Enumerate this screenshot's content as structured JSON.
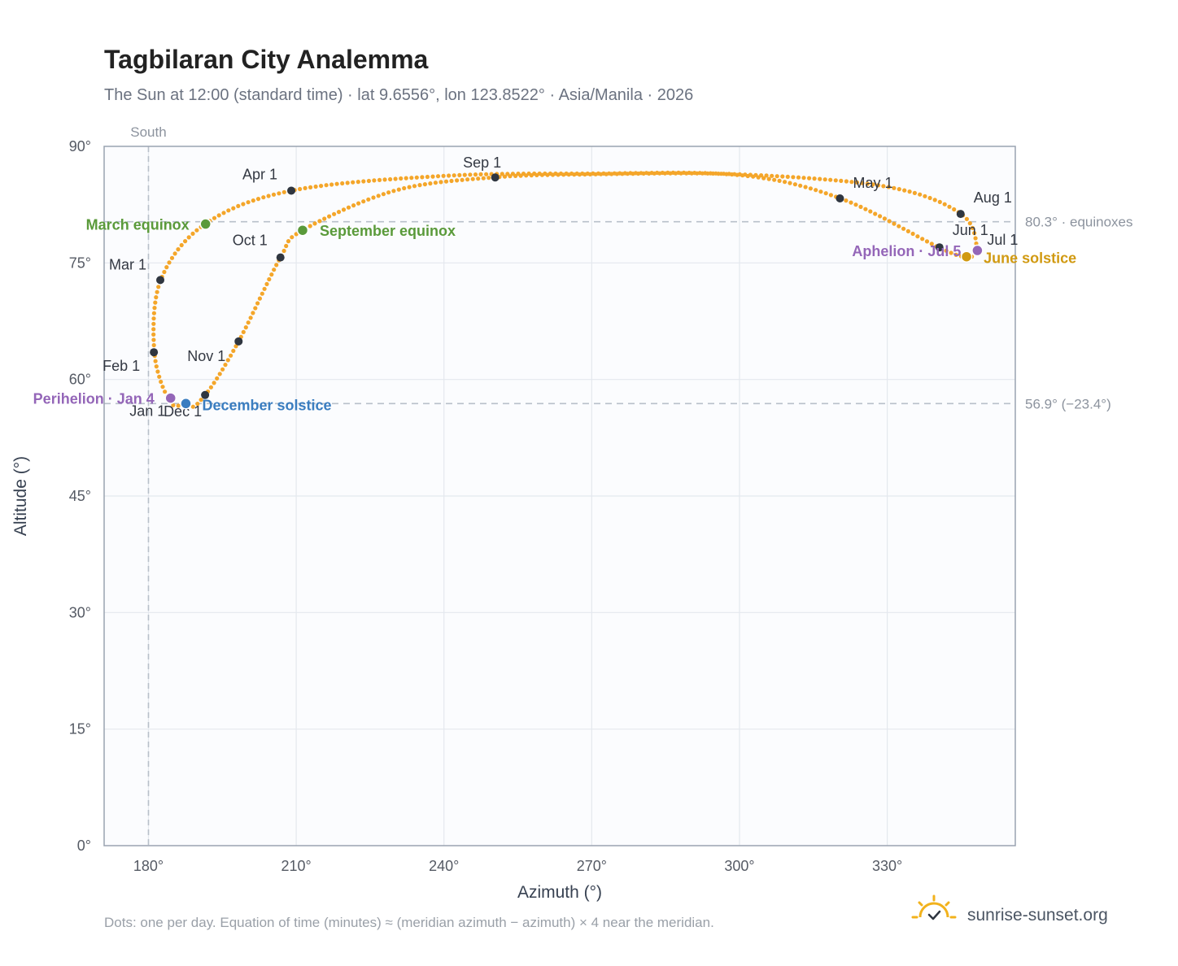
{
  "header": {
    "title": "Tagbilaran City Analemma",
    "subtitle": "The Sun at 12:00 (standard time) · lat 9.6556°, lon 123.8522° · Asia/Manila · 2026"
  },
  "footer": {
    "note": "Dots: one per day. Equation of time (minutes) ≈ (meridian azimuth − azimuth) × 4 near the meridian.",
    "brand": "sunrise-sunset.org"
  },
  "colors": {
    "path": "#f4a62a",
    "month_marker": "#2f3640",
    "equinox": "#5a9a3a",
    "december_solstice": "#3a7dc0",
    "june_solstice": "#d19a12",
    "perihelion_aphelion": "#9466b8",
    "plot_bg": "#fbfcfe",
    "grid": "#e4e8ee",
    "frame": "#9aa3b0",
    "reference": "#b8c0ca"
  },
  "chart_data": {
    "type": "scatter",
    "xlabel": "Azimuth (°)",
    "ylabel": "Altitude (°)",
    "xlim": [
      171,
      356
    ],
    "ylim": [
      0,
      90
    ],
    "x_ticks": [
      {
        "value": 180,
        "label": "180°"
      },
      {
        "value": 210,
        "label": "210°"
      },
      {
        "value": 240,
        "label": "240°"
      },
      {
        "value": 270,
        "label": "270°"
      },
      {
        "value": 300,
        "label": "300°"
      },
      {
        "value": 330,
        "label": "330°"
      }
    ],
    "y_ticks": [
      {
        "value": 0,
        "label": "0°"
      },
      {
        "value": 15,
        "label": "15°"
      },
      {
        "value": 30,
        "label": "30°"
      },
      {
        "value": 45,
        "label": "45°"
      },
      {
        "value": 60,
        "label": "60°"
      },
      {
        "value": 75,
        "label": "75°"
      },
      {
        "value": 90,
        "label": "90°"
      }
    ],
    "grid": true,
    "meridian": {
      "azimuth": 180,
      "label": "South"
    },
    "reference_lines": [
      {
        "altitude": 80.3,
        "label": "80.3° · equinoxes"
      },
      {
        "altitude": 56.9,
        "label": "56.9° (−23.4°)"
      }
    ],
    "path_anchors": [
      {
        "x": 184.3,
        "y": 57.2
      },
      {
        "x": 181.2,
        "y": 63.5
      },
      {
        "x": 182.5,
        "y": 72.8
      },
      {
        "x": 191.5,
        "y": 80.0
      },
      {
        "x": 209.0,
        "y": 84.3
      },
      {
        "x": 240.0,
        "y": 86.2
      },
      {
        "x": 270.0,
        "y": 86.5
      },
      {
        "x": 300.0,
        "y": 86.3
      },
      {
        "x": 320.5,
        "y": 83.3
      },
      {
        "x": 340.5,
        "y": 77.0
      },
      {
        "x": 346.0,
        "y": 75.8
      },
      {
        "x": 348.2,
        "y": 76.7
      },
      {
        "x": 345.0,
        "y": 81.3
      },
      {
        "x": 330.0,
        "y": 84.8
      },
      {
        "x": 300.0,
        "y": 86.4
      },
      {
        "x": 270.0,
        "y": 86.4
      },
      {
        "x": 250.0,
        "y": 86.0
      },
      {
        "x": 230.0,
        "y": 84.3
      },
      {
        "x": 211.3,
        "y": 79.2
      },
      {
        "x": 206.8,
        "y": 75.7
      },
      {
        "x": 198.3,
        "y": 64.9
      },
      {
        "x": 191.5,
        "y": 58.0
      },
      {
        "x": 187.5,
        "y": 56.9
      },
      {
        "x": 184.3,
        "y": 57.2
      }
    ],
    "month_markers": [
      {
        "label": "Jan 1",
        "x": 184.6,
        "y": 57.6
      },
      {
        "label": "Feb 1",
        "x": 181.1,
        "y": 63.5
      },
      {
        "label": "Mar 1",
        "x": 182.4,
        "y": 72.8
      },
      {
        "label": "Apr 1",
        "x": 209.0,
        "y": 84.3
      },
      {
        "label": "May 1",
        "x": 320.4,
        "y": 83.3
      },
      {
        "label": "Jun 1",
        "x": 340.6,
        "y": 77.0
      },
      {
        "label": "Jul 1",
        "x": 348.3,
        "y": 76.6
      },
      {
        "label": "Aug 1",
        "x": 344.9,
        "y": 81.3
      },
      {
        "label": "Sep 1",
        "x": 250.4,
        "y": 86.0
      },
      {
        "label": "Oct 1",
        "x": 206.8,
        "y": 75.7
      },
      {
        "label": "Nov 1",
        "x": 198.3,
        "y": 64.9
      },
      {
        "label": "Dec 1",
        "x": 191.5,
        "y": 58.0
      }
    ],
    "events": [
      {
        "label": "March equinox",
        "x": 191.6,
        "y": 80.0,
        "kind": "equinox"
      },
      {
        "label": "September equinox",
        "x": 211.3,
        "y": 79.2,
        "kind": "equinox"
      },
      {
        "label": "June solstice",
        "x": 346.1,
        "y": 75.8,
        "kind": "june"
      },
      {
        "label": "December solstice",
        "x": 187.6,
        "y": 56.9,
        "kind": "december"
      },
      {
        "label": "Perihelion · Jan 4",
        "x": 184.5,
        "y": 57.6,
        "kind": "apsis"
      },
      {
        "label": "Aphelion · Jul 5",
        "x": 348.3,
        "y": 76.6,
        "kind": "apsis"
      }
    ]
  }
}
